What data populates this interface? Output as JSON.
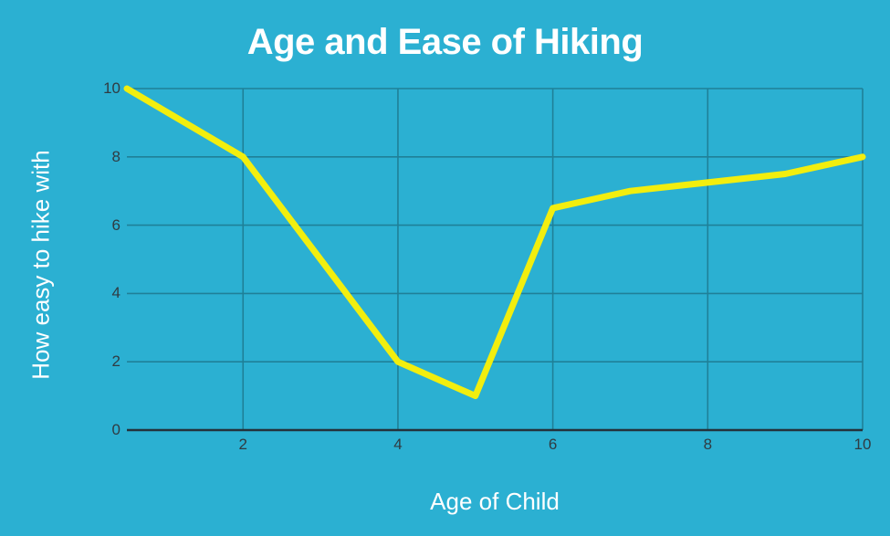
{
  "title": "Age and Ease of Hiking",
  "axes": {
    "xlabel": "Age of Child",
    "ylabel": "How easy to hike with"
  },
  "chart_data": {
    "type": "line",
    "title": "Age and Ease of Hiking",
    "xlabel": "Age of Child",
    "ylabel": "How easy to hike with",
    "x": [
      0.5,
      2,
      4,
      5,
      6,
      7,
      9,
      10
    ],
    "y": [
      10,
      8,
      2,
      1,
      6.5,
      7,
      7.5,
      8
    ],
    "xlim": [
      0.5,
      10
    ],
    "ylim": [
      0,
      10
    ],
    "x_ticks": [
      2,
      4,
      6,
      8,
      10
    ],
    "y_ticks": [
      0,
      2,
      4,
      6,
      8,
      10
    ],
    "grid": true,
    "legend": false,
    "colors": {
      "background": "#2bb0d2",
      "line": "#f2ee0e",
      "gridline": "#1f8098",
      "axis_line": "#24323b",
      "tick_text": "#303b42",
      "label_text": "#ffffff"
    }
  }
}
